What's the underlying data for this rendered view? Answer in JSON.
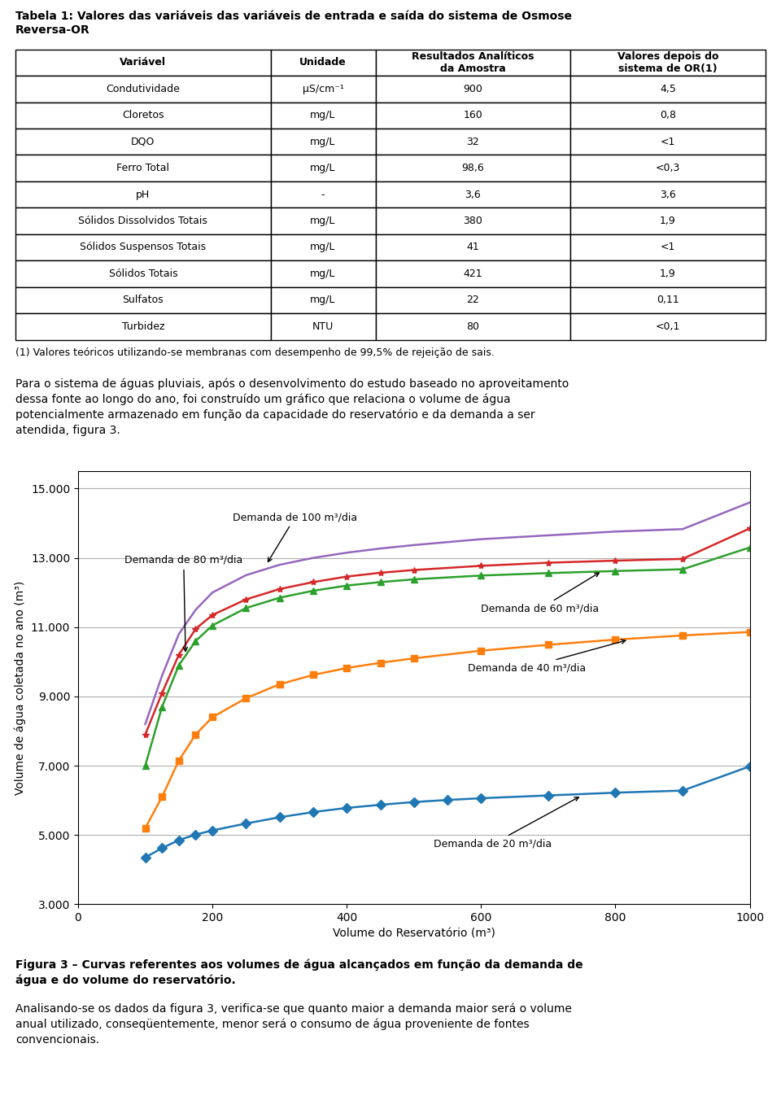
{
  "page_title": "Tabela 1: Valores das variáveis das variáveis de entrada e saída do sistema de Osmose\nReversa-OR",
  "table": {
    "columns": [
      "Variável",
      "Unidade",
      "Resultados Analíticos\nda Amostra",
      "Valores depois do\nsistema de OR(1)"
    ],
    "rows": [
      [
        "Condutividade",
        "μS/cm⁻¹",
        "900",
        "4,5"
      ],
      [
        "Cloretos",
        "mg/L",
        "160",
        "0,8"
      ],
      [
        "DQO",
        "mg/L",
        "32",
        "<1"
      ],
      [
        "Ferro Total",
        "mg/L",
        "98,6",
        "<0,3"
      ],
      [
        "pH",
        "-",
        "3,6",
        "3,6"
      ],
      [
        "Sólidos Dissolvidos Totais",
        "mg/L",
        "380",
        "1,9"
      ],
      [
        "Sólidos Suspensos Totais",
        "mg/L",
        "41",
        "<1"
      ],
      [
        "Sólidos Totais",
        "mg/L",
        "421",
        "1,9"
      ],
      [
        "Sulfatos",
        "mg/L",
        "22",
        "0,11"
      ],
      [
        "Turbidez",
        "NTU",
        "80",
        "<0,1"
      ]
    ]
  },
  "footnote": "(1) Valores teóricos utilizando-se membranas com desempenho de 99,5% de rejeição de sais.",
  "paragraph": "Para o sistema de águas pluviais, após o desenvolvimento do estudo baseado no aproveitamento\ndessa fonte ao longo do ano, foi construído um gráfico que relaciona o volume de água\npotencialmente armazenado em função da capacidade do reservatório e da demanda a ser\natendida, figura 3.",
  "caption": "Figura 3 – Curvas referentes aos volumes de água alcançados em função da demanda de\nágua e do volume do reservatório.",
  "closing_text": "Analisando-se os dados da figura 3, verifica-se que quanto maior a demanda maior será o volume\nanual utilizado, conseqüentemente, menor será o consumo de água proveniente de fontes\nconvencionais.",
  "chart_data": {
    "type": "line",
    "xlabel": "Volume do Reservatório (m³)",
    "ylabel": "Volume de água coletada no ano (m³)",
    "xlim": [
      0,
      1000
    ],
    "ylim": [
      3000,
      15500
    ],
    "xticks": [
      0,
      200,
      400,
      600,
      800,
      1000
    ],
    "yticks": [
      {
        "value": 3000,
        "label": "3.000"
      },
      {
        "value": 5000,
        "label": "5.000"
      },
      {
        "value": 7000,
        "label": "7.000"
      },
      {
        "value": 9000,
        "label": "9.000"
      },
      {
        "value": 11000,
        "label": "11.000"
      },
      {
        "value": 13000,
        "label": "13.000"
      },
      {
        "value": 15000,
        "label": "15.000"
      }
    ],
    "grid": "y",
    "series": [
      {
        "marker": "diamond",
        "x": [
          100,
          125,
          150,
          175,
          200,
          250,
          300,
          350,
          400,
          450,
          500,
          550,
          600,
          700,
          800,
          900,
          1000
        ],
        "values": [
          4350,
          4620,
          4850,
          5010,
          5130,
          5330,
          5510,
          5660,
          5780,
          5870,
          5950,
          6010,
          6060,
          6140,
          6220,
          6280,
          6980
        ]
      },
      {
        "marker": "square",
        "x": [
          100,
          125,
          150,
          175,
          200,
          250,
          300,
          350,
          400,
          450,
          500,
          600,
          700,
          800,
          900,
          1000
        ],
        "values": [
          5200,
          6100,
          7150,
          7900,
          8400,
          8950,
          9350,
          9620,
          9820,
          9970,
          10100,
          10320,
          10490,
          10640,
          10760,
          10860
        ]
      },
      {
        "marker": "triangle",
        "x": [
          100,
          125,
          150,
          175,
          200,
          250,
          300,
          350,
          400,
          450,
          500,
          600,
          700,
          800,
          900,
          1000
        ],
        "values": [
          7000,
          8700,
          9900,
          10600,
          11050,
          11550,
          11850,
          12050,
          12200,
          12300,
          12380,
          12490,
          12560,
          12620,
          12670,
          13300
        ]
      },
      {
        "marker": "star",
        "x": [
          100,
          125,
          150,
          175,
          200,
          250,
          300,
          350,
          400,
          450,
          500,
          600,
          700,
          800,
          900,
          1000
        ],
        "values": [
          7900,
          9100,
          10200,
          10950,
          11350,
          11800,
          12100,
          12300,
          12460,
          12570,
          12650,
          12770,
          12860,
          12920,
          12970,
          13850
        ]
      },
      {
        "marker": "none",
        "x": [
          100,
          125,
          150,
          175,
          200,
          250,
          300,
          350,
          400,
          450,
          500,
          600,
          700,
          800,
          900,
          1000
        ],
        "values": [
          8200,
          9600,
          10800,
          11500,
          12000,
          12500,
          12800,
          13000,
          13150,
          13270,
          13370,
          13540,
          13650,
          13760,
          13830,
          14600
        ]
      }
    ],
    "annotations": [
      {
        "text": "Demanda de 100 m³/dia",
        "x": 280,
        "y": 12800
      },
      {
        "text": "Demanda de 80 m³/dia",
        "x": 160,
        "y": 10200
      },
      {
        "text": "Demanda de 60 m³/dia",
        "x": 780,
        "y": 12620
      },
      {
        "text": "Demanda de 40 m³/dia",
        "x": 820,
        "y": 10640
      },
      {
        "text": "Demanda de 20 m³/dia",
        "x": 750,
        "y": 6140
      }
    ]
  }
}
